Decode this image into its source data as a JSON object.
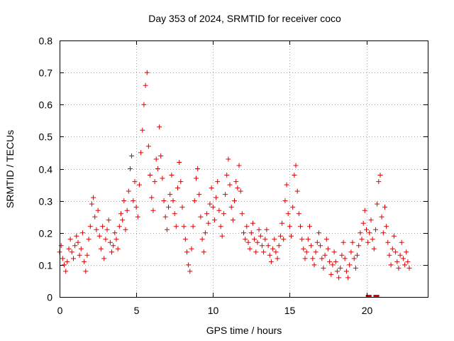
{
  "chart_data": {
    "type": "scatter",
    "title": "Day 353 of 2024, SRMTID for receiver coco",
    "xlabel": "GPS time / hours",
    "ylabel": "SRMTID / TECUs",
    "xlim": [
      0,
      24
    ],
    "ylim": [
      0,
      0.8
    ],
    "xticks": [
      "0",
      "5",
      "10",
      "15",
      "20"
    ],
    "xtick_values": [
      0,
      5,
      10,
      15,
      20
    ],
    "yticks": [
      "0",
      "0.1",
      "0.2",
      "0.3",
      "0.4",
      "0.5",
      "0.6",
      "0.7",
      "0.8"
    ],
    "ytick_values": [
      0,
      0.1,
      0.2,
      0.3,
      0.4,
      0.5,
      0.6,
      0.7,
      0.8
    ],
    "grid": true,
    "marker": "+",
    "color": "#e00000",
    "series": [
      {
        "name": "SRMTID",
        "points": [
          [
            0.0,
            0.14
          ],
          [
            0.1,
            0.16
          ],
          [
            0.2,
            0.12
          ],
          [
            0.3,
            0.1
          ],
          [
            0.4,
            0.08
          ],
          [
            0.5,
            0.11
          ],
          [
            0.6,
            0.15
          ],
          [
            0.7,
            0.18
          ],
          [
            0.8,
            0.14
          ],
          [
            0.9,
            0.12
          ],
          [
            1.0,
            0.16
          ],
          [
            1.1,
            0.19
          ],
          [
            1.2,
            0.17
          ],
          [
            1.3,
            0.13
          ],
          [
            1.4,
            0.15
          ],
          [
            1.5,
            0.2
          ],
          [
            1.6,
            0.11
          ],
          [
            1.7,
            0.08
          ],
          [
            1.8,
            0.13
          ],
          [
            1.9,
            0.18
          ],
          [
            2.0,
            0.22
          ],
          [
            2.1,
            0.29
          ],
          [
            2.2,
            0.31
          ],
          [
            2.3,
            0.25
          ],
          [
            2.4,
            0.21
          ],
          [
            2.5,
            0.27
          ],
          [
            2.6,
            0.19
          ],
          [
            2.7,
            0.15
          ],
          [
            2.8,
            0.22
          ],
          [
            2.9,
            0.12
          ],
          [
            3.0,
            0.18
          ],
          [
            3.1,
            0.21
          ],
          [
            3.2,
            0.24
          ],
          [
            3.3,
            0.17
          ],
          [
            3.4,
            0.14
          ],
          [
            3.5,
            0.16
          ],
          [
            3.6,
            0.2
          ],
          [
            3.7,
            0.18
          ],
          [
            3.8,
            0.15
          ],
          [
            3.9,
            0.22
          ],
          [
            4.0,
            0.26
          ],
          [
            4.1,
            0.24
          ],
          [
            4.2,
            0.3
          ],
          [
            4.3,
            0.21
          ],
          [
            4.4,
            0.27
          ],
          [
            4.5,
            0.33
          ],
          [
            4.6,
            0.4
          ],
          [
            4.7,
            0.44
          ],
          [
            4.8,
            0.3
          ],
          [
            4.9,
            0.36
          ],
          [
            5.0,
            0.28
          ],
          [
            5.1,
            0.25
          ],
          [
            5.2,
            0.35
          ],
          [
            5.3,
            0.45
          ],
          [
            5.4,
            0.52
          ],
          [
            5.5,
            0.6
          ],
          [
            5.6,
            0.66
          ],
          [
            5.7,
            0.7
          ],
          [
            5.8,
            0.47
          ],
          [
            5.9,
            0.38
          ],
          [
            6.0,
            0.31
          ],
          [
            6.1,
            0.27
          ],
          [
            6.2,
            0.36
          ],
          [
            6.3,
            0.43
          ],
          [
            6.4,
            0.4
          ],
          [
            6.5,
            0.53
          ],
          [
            6.6,
            0.44
          ],
          [
            6.7,
            0.37
          ],
          [
            6.8,
            0.3
          ],
          [
            6.9,
            0.25
          ],
          [
            7.0,
            0.21
          ],
          [
            7.1,
            0.28
          ],
          [
            7.2,
            0.32
          ],
          [
            7.3,
            0.38
          ],
          [
            7.4,
            0.3
          ],
          [
            7.5,
            0.26
          ],
          [
            7.6,
            0.22
          ],
          [
            7.7,
            0.34
          ],
          [
            7.8,
            0.42
          ],
          [
            7.9,
            0.36
          ],
          [
            8.0,
            0.28
          ],
          [
            8.1,
            0.22
          ],
          [
            8.2,
            0.18
          ],
          [
            8.3,
            0.14
          ],
          [
            8.4,
            0.1
          ],
          [
            8.5,
            0.08
          ],
          [
            8.6,
            0.15
          ],
          [
            8.7,
            0.22
          ],
          [
            8.8,
            0.3
          ],
          [
            8.9,
            0.37
          ],
          [
            9.0,
            0.4
          ],
          [
            9.1,
            0.32
          ],
          [
            9.2,
            0.25
          ],
          [
            9.3,
            0.18
          ],
          [
            9.4,
            0.14
          ],
          [
            9.5,
            0.2
          ],
          [
            9.6,
            0.26
          ],
          [
            9.7,
            0.23
          ],
          [
            9.8,
            0.29
          ],
          [
            9.9,
            0.34
          ],
          [
            10.0,
            0.28
          ],
          [
            10.1,
            0.24
          ],
          [
            10.2,
            0.31
          ],
          [
            10.3,
            0.36
          ],
          [
            10.4,
            0.27
          ],
          [
            10.5,
            0.22
          ],
          [
            10.6,
            0.19
          ],
          [
            10.7,
            0.26
          ],
          [
            10.8,
            0.32
          ],
          [
            10.9,
            0.38
          ],
          [
            11.0,
            0.43
          ],
          [
            11.1,
            0.35
          ],
          [
            11.2,
            0.28
          ],
          [
            11.3,
            0.24
          ],
          [
            11.4,
            0.3
          ],
          [
            11.5,
            0.36
          ],
          [
            11.6,
            0.34
          ],
          [
            11.7,
            0.41
          ],
          [
            11.8,
            0.33
          ],
          [
            11.9,
            0.26
          ],
          [
            12.0,
            0.2
          ],
          [
            12.1,
            0.18
          ],
          [
            12.2,
            0.22
          ],
          [
            12.3,
            0.17
          ],
          [
            12.4,
            0.15
          ],
          [
            12.5,
            0.2
          ],
          [
            12.6,
            0.23
          ],
          [
            12.7,
            0.18
          ],
          [
            12.8,
            0.14
          ],
          [
            12.9,
            0.17
          ],
          [
            13.0,
            0.21
          ],
          [
            13.1,
            0.19
          ],
          [
            13.2,
            0.16
          ],
          [
            13.3,
            0.14
          ],
          [
            13.4,
            0.18
          ],
          [
            13.5,
            0.21
          ],
          [
            13.6,
            0.16
          ],
          [
            13.7,
            0.13
          ],
          [
            13.8,
            0.11
          ],
          [
            13.9,
            0.15
          ],
          [
            14.0,
            0.18
          ],
          [
            14.1,
            0.14
          ],
          [
            14.2,
            0.12
          ],
          [
            14.3,
            0.16
          ],
          [
            14.4,
            0.19
          ],
          [
            14.5,
            0.23
          ],
          [
            14.6,
            0.18
          ],
          [
            14.7,
            0.3
          ],
          [
            14.8,
            0.35
          ],
          [
            14.9,
            0.26
          ],
          [
            15.0,
            0.22
          ],
          [
            15.1,
            0.19
          ],
          [
            15.2,
            0.28
          ],
          [
            15.3,
            0.38
          ],
          [
            15.4,
            0.41
          ],
          [
            15.5,
            0.33
          ],
          [
            15.6,
            0.26
          ],
          [
            15.7,
            0.22
          ],
          [
            15.8,
            0.18
          ],
          [
            15.9,
            0.15
          ],
          [
            16.0,
            0.12
          ],
          [
            16.1,
            0.14
          ],
          [
            16.2,
            0.18
          ],
          [
            16.3,
            0.22
          ],
          [
            16.4,
            0.16
          ],
          [
            16.5,
            0.12
          ],
          [
            16.6,
            0.1
          ],
          [
            16.7,
            0.14
          ],
          [
            16.8,
            0.17
          ],
          [
            16.9,
            0.2
          ],
          [
            17.0,
            0.16
          ],
          [
            17.1,
            0.12
          ],
          [
            17.2,
            0.09
          ],
          [
            17.3,
            0.13
          ],
          [
            17.4,
            0.18
          ],
          [
            17.5,
            0.15
          ],
          [
            17.6,
            0.11
          ],
          [
            17.7,
            0.07
          ],
          [
            17.8,
            0.1
          ],
          [
            17.9,
            0.14
          ],
          [
            18.0,
            0.11
          ],
          [
            18.1,
            0.08
          ],
          [
            18.2,
            0.06
          ],
          [
            18.3,
            0.09
          ],
          [
            18.4,
            0.13
          ],
          [
            18.5,
            0.17
          ],
          [
            18.6,
            0.12
          ],
          [
            18.7,
            0.08
          ],
          [
            18.8,
            0.06
          ],
          [
            18.9,
            0.1
          ],
          [
            19.0,
            0.14
          ],
          [
            19.1,
            0.17
          ],
          [
            19.2,
            0.12
          ],
          [
            19.3,
            0.09
          ],
          [
            19.4,
            0.13
          ],
          [
            19.5,
            0.16
          ],
          [
            19.6,
            0.2
          ],
          [
            19.7,
            0.18
          ],
          [
            19.8,
            0.23
          ],
          [
            19.9,
            0.27
          ],
          [
            20.0,
            0.21
          ],
          [
            20.1,
            0.17
          ],
          [
            20.2,
            0.2
          ],
          [
            20.3,
            0.24
          ],
          [
            20.4,
            0.18
          ],
          [
            20.5,
            0.15
          ],
          [
            20.6,
            0.21
          ],
          [
            20.7,
            0.29
          ],
          [
            20.8,
            0.36
          ],
          [
            20.9,
            0.38
          ],
          [
            21.0,
            0.25
          ],
          [
            21.1,
            0.2
          ],
          [
            21.2,
            0.28
          ],
          [
            21.3,
            0.22
          ],
          [
            21.4,
            0.17
          ],
          [
            21.5,
            0.13
          ],
          [
            21.6,
            0.1
          ],
          [
            21.7,
            0.15
          ],
          [
            21.8,
            0.19
          ],
          [
            21.9,
            0.14
          ],
          [
            22.0,
            0.11
          ],
          [
            22.1,
            0.09
          ],
          [
            22.2,
            0.13
          ],
          [
            22.3,
            0.17
          ],
          [
            22.4,
            0.12
          ],
          [
            22.5,
            0.1
          ],
          [
            22.6,
            0.14
          ],
          [
            22.7,
            0.11
          ],
          [
            22.8,
            0.09
          ],
          [
            20.1,
            0.0
          ],
          [
            20.2,
            0.0
          ],
          [
            20.6,
            0.0
          ],
          [
            20.7,
            0.0
          ]
        ]
      }
    ]
  }
}
